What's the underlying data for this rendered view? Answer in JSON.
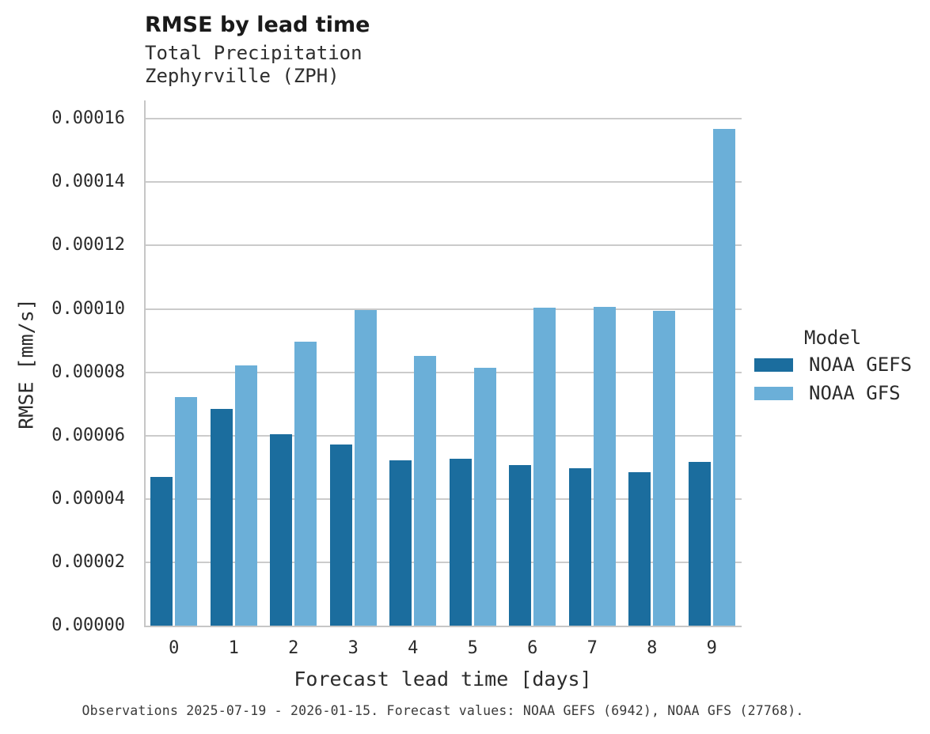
{
  "title": "RMSE by lead time",
  "subtitle_lines": [
    "Total Precipitation",
    "Zephyrville (ZPH)"
  ],
  "footer": "Observations 2025-07-19 - 2026-01-15. Forecast values: NOAA GEFS (6942), NOAA GFS (27768).",
  "legend": {
    "title": "Model",
    "entries": [
      {
        "label": "NOAA GEFS",
        "color": "#1b6d9e"
      },
      {
        "label": "NOAA GFS",
        "color": "#6bafd8"
      }
    ]
  },
  "colors": {
    "grid": "#cbcbcb",
    "spine": "#c6c6c6",
    "dark_series": "#1b6d9e",
    "light_series": "#6bafd8",
    "text": "#2b2b2b"
  },
  "chart_data": {
    "type": "bar",
    "title": "RMSE by lead time",
    "subtitle": "Total Precipitation — Zephyrville (ZPH)",
    "categories": [
      0,
      1,
      2,
      3,
      4,
      5,
      6,
      7,
      8,
      9
    ],
    "series": [
      {
        "name": "NOAA GEFS",
        "color": "#1b6d9e",
        "values": [
          4.7e-05,
          6.85e-05,
          6.05e-05,
          5.72e-05,
          5.23e-05,
          5.27e-05,
          5.06e-05,
          4.96e-05,
          4.84e-05,
          5.17e-05
        ]
      },
      {
        "name": "NOAA GFS",
        "color": "#6bafd8",
        "values": [
          7.22e-05,
          8.21e-05,
          8.97e-05,
          9.96e-05,
          8.52e-05,
          8.13e-05,
          0.0001003,
          0.0001006,
          9.93e-05,
          0.0001569
        ]
      }
    ],
    "xlabel": "Forecast lead time [days]",
    "ylabel": "RMSE [mm/s]",
    "ylim": [
      0,
      0.0001658
    ],
    "yticks": [
      0.0,
      2e-05,
      4e-05,
      6e-05,
      8e-05,
      0.0001,
      0.00012,
      0.00014,
      0.00016
    ],
    "ytick_decimals": 5,
    "grid": true,
    "legend_position": "right"
  }
}
